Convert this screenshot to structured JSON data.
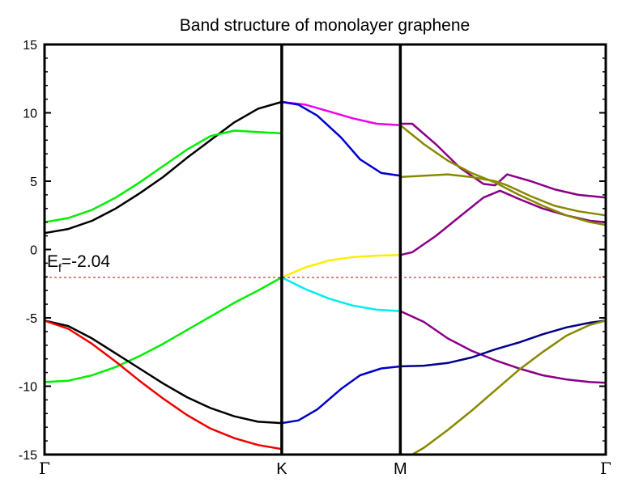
{
  "chart_data": {
    "type": "line",
    "title": "Band structure of monolayer graphene",
    "xlabel": "",
    "ylabel": "",
    "ylim": [
      -15,
      15
    ],
    "yticks": [
      15,
      10,
      5,
      0,
      -5,
      -10,
      -15
    ],
    "ytick_labels": [
      "15",
      "10",
      "5",
      "0",
      "-5",
      "-10",
      "-15"
    ],
    "kpoints": [
      {
        "label": "Γ",
        "x": 0
      },
      {
        "label": "K",
        "x": 1
      },
      {
        "label": "M",
        "x": 1.5
      },
      {
        "label": "Γ",
        "x": 2.366
      }
    ],
    "fermi_level": {
      "value": -2.04,
      "label_main": "E",
      "label_sub": "f",
      "label_value": "=-2.04",
      "color": "#cc0000"
    },
    "grid": false,
    "series": [
      {
        "color": "#000000",
        "points": [
          [
            0,
            1.2
          ],
          [
            0.1,
            1.5
          ],
          [
            0.2,
            2.1
          ],
          [
            0.3,
            3.0
          ],
          [
            0.4,
            4.1
          ],
          [
            0.5,
            5.3
          ],
          [
            0.6,
            6.7
          ],
          [
            0.7,
            8.0
          ],
          [
            0.8,
            9.3
          ],
          [
            0.9,
            10.3
          ],
          [
            1.0,
            10.8
          ]
        ]
      },
      {
        "color": "#00ee00",
        "points": [
          [
            0,
            2.0
          ],
          [
            0.1,
            2.3
          ],
          [
            0.2,
            2.9
          ],
          [
            0.3,
            3.8
          ],
          [
            0.4,
            4.9
          ],
          [
            0.5,
            6.1
          ],
          [
            0.6,
            7.3
          ],
          [
            0.7,
            8.3
          ],
          [
            0.8,
            8.7
          ],
          [
            0.9,
            8.6
          ],
          [
            1.0,
            8.5
          ]
        ]
      },
      {
        "color": "#ee00ee",
        "points": [
          [
            1.0,
            10.8
          ],
          [
            1.1,
            10.6
          ],
          [
            1.2,
            10.1
          ],
          [
            1.3,
            9.6
          ],
          [
            1.4,
            9.2
          ],
          [
            1.5,
            9.1
          ]
        ]
      },
      {
        "color": "#0000cc",
        "points": [
          [
            1.0,
            10.8
          ],
          [
            1.07,
            10.6
          ],
          [
            1.15,
            9.8
          ],
          [
            1.25,
            8.2
          ],
          [
            1.33,
            6.6
          ],
          [
            1.42,
            5.6
          ],
          [
            1.5,
            5.4
          ]
        ]
      },
      {
        "color": "#ffee00",
        "points": [
          [
            1.0,
            -2.04
          ],
          [
            1.1,
            -1.3
          ],
          [
            1.2,
            -0.8
          ],
          [
            1.3,
            -0.55
          ],
          [
            1.4,
            -0.45
          ],
          [
            1.5,
            -0.4
          ]
        ]
      },
      {
        "color": "#00eeee",
        "points": [
          [
            1.0,
            -2.04
          ],
          [
            1.1,
            -2.9
          ],
          [
            1.2,
            -3.6
          ],
          [
            1.3,
            -4.1
          ],
          [
            1.4,
            -4.4
          ],
          [
            1.5,
            -4.5
          ]
        ]
      },
      {
        "color": "#00ee00",
        "points": [
          [
            0,
            -9.7
          ],
          [
            0.1,
            -9.6
          ],
          [
            0.2,
            -9.2
          ],
          [
            0.3,
            -8.6
          ],
          [
            0.4,
            -7.8
          ],
          [
            0.5,
            -6.9
          ],
          [
            0.6,
            -5.9
          ],
          [
            0.7,
            -4.9
          ],
          [
            0.8,
            -3.9
          ],
          [
            0.9,
            -3.0
          ],
          [
            1.0,
            -2.04
          ]
        ]
      },
      {
        "color": "#000000",
        "points": [
          [
            0,
            -5.2
          ],
          [
            0.1,
            -5.6
          ],
          [
            0.2,
            -6.5
          ],
          [
            0.3,
            -7.6
          ],
          [
            0.4,
            -8.7
          ],
          [
            0.5,
            -9.8
          ],
          [
            0.6,
            -10.8
          ],
          [
            0.7,
            -11.6
          ],
          [
            0.8,
            -12.2
          ],
          [
            0.9,
            -12.6
          ],
          [
            1.0,
            -12.7
          ]
        ]
      },
      {
        "color": "#ee0000",
        "points": [
          [
            0,
            -5.2
          ],
          [
            0.1,
            -5.8
          ],
          [
            0.2,
            -6.9
          ],
          [
            0.3,
            -8.2
          ],
          [
            0.4,
            -9.6
          ],
          [
            0.5,
            -10.9
          ],
          [
            0.6,
            -12.1
          ],
          [
            0.7,
            -13.1
          ],
          [
            0.8,
            -13.8
          ],
          [
            0.9,
            -14.3
          ],
          [
            1.0,
            -14.6
          ]
        ]
      },
      {
        "color": "#0000cc",
        "points": [
          [
            1.0,
            -12.7
          ],
          [
            1.07,
            -12.5
          ],
          [
            1.15,
            -11.7
          ],
          [
            1.25,
            -10.2
          ],
          [
            1.33,
            -9.2
          ],
          [
            1.42,
            -8.7
          ],
          [
            1.5,
            -8.55
          ]
        ]
      },
      {
        "color": "#880088",
        "points": [
          [
            1.5,
            9.2
          ],
          [
            1.55,
            9.2
          ],
          [
            1.65,
            7.7
          ],
          [
            1.75,
            6.0
          ],
          [
            1.85,
            4.8
          ],
          [
            1.9,
            4.7
          ],
          [
            1.95,
            5.5
          ],
          [
            2.05,
            5.0
          ],
          [
            2.15,
            4.4
          ],
          [
            2.25,
            4.0
          ],
          [
            2.366,
            3.8
          ]
        ]
      },
      {
        "color": "#880088",
        "points": [
          [
            1.5,
            -0.4
          ],
          [
            1.55,
            -0.2
          ],
          [
            1.65,
            1.0
          ],
          [
            1.75,
            2.4
          ],
          [
            1.85,
            3.8
          ],
          [
            1.92,
            4.3
          ],
          [
            2.0,
            3.7
          ],
          [
            2.1,
            3.0
          ],
          [
            2.2,
            2.5
          ],
          [
            2.3,
            2.1
          ],
          [
            2.366,
            2.0
          ]
        ]
      },
      {
        "color": "#888800",
        "points": [
          [
            1.5,
            9.1
          ],
          [
            1.6,
            7.7
          ],
          [
            1.7,
            6.5
          ],
          [
            1.8,
            5.6
          ],
          [
            1.9,
            4.9
          ],
          [
            2.0,
            4.0
          ],
          [
            2.1,
            3.2
          ],
          [
            2.2,
            2.5
          ],
          [
            2.3,
            2.0
          ],
          [
            2.366,
            1.8
          ]
        ]
      },
      {
        "color": "#888800",
        "points": [
          [
            1.5,
            5.3
          ],
          [
            1.6,
            5.4
          ],
          [
            1.7,
            5.5
          ],
          [
            1.8,
            5.3
          ],
          [
            1.9,
            5.0
          ],
          [
            1.95,
            4.7
          ],
          [
            2.05,
            3.9
          ],
          [
            2.15,
            3.2
          ],
          [
            2.25,
            2.8
          ],
          [
            2.366,
            2.5
          ]
        ]
      },
      {
        "color": "#880088",
        "points": [
          [
            1.5,
            -4.5
          ],
          [
            1.6,
            -5.3
          ],
          [
            1.7,
            -6.5
          ],
          [
            1.8,
            -7.4
          ],
          [
            1.9,
            -8.1
          ],
          [
            2.0,
            -8.7
          ],
          [
            2.1,
            -9.2
          ],
          [
            2.2,
            -9.5
          ],
          [
            2.3,
            -9.7
          ],
          [
            2.366,
            -9.75
          ]
        ]
      },
      {
        "color": "#000088",
        "points": [
          [
            1.5,
            -8.55
          ],
          [
            1.6,
            -8.5
          ],
          [
            1.7,
            -8.3
          ],
          [
            1.8,
            -7.9
          ],
          [
            1.9,
            -7.3
          ],
          [
            2.0,
            -6.8
          ],
          [
            2.1,
            -6.2
          ],
          [
            2.2,
            -5.7
          ],
          [
            2.3,
            -5.35
          ],
          [
            2.366,
            -5.2
          ]
        ]
      },
      {
        "color": "#888800",
        "points": [
          [
            1.55,
            -15.0
          ],
          [
            1.6,
            -14.5
          ],
          [
            1.7,
            -13.2
          ],
          [
            1.8,
            -11.8
          ],
          [
            1.9,
            -10.3
          ],
          [
            2.0,
            -8.8
          ],
          [
            2.1,
            -7.5
          ],
          [
            2.2,
            -6.3
          ],
          [
            2.3,
            -5.5
          ],
          [
            2.366,
            -5.2
          ]
        ]
      }
    ]
  }
}
